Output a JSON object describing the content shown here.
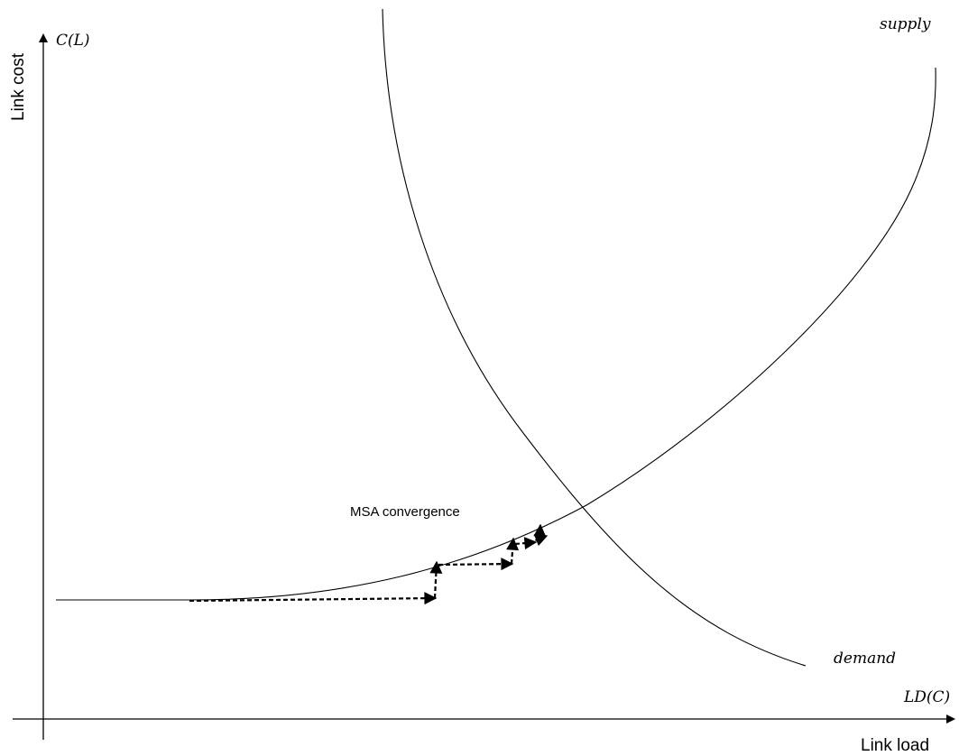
{
  "diagram": {
    "y_axis": {
      "title": "Link cost",
      "symbol": "C(L)"
    },
    "x_axis": {
      "title": "Link load",
      "symbol": "LD(C)"
    },
    "curves": {
      "supply_label": "supply",
      "demand_label": "demand"
    },
    "annotation": "MSA convergence"
  }
}
